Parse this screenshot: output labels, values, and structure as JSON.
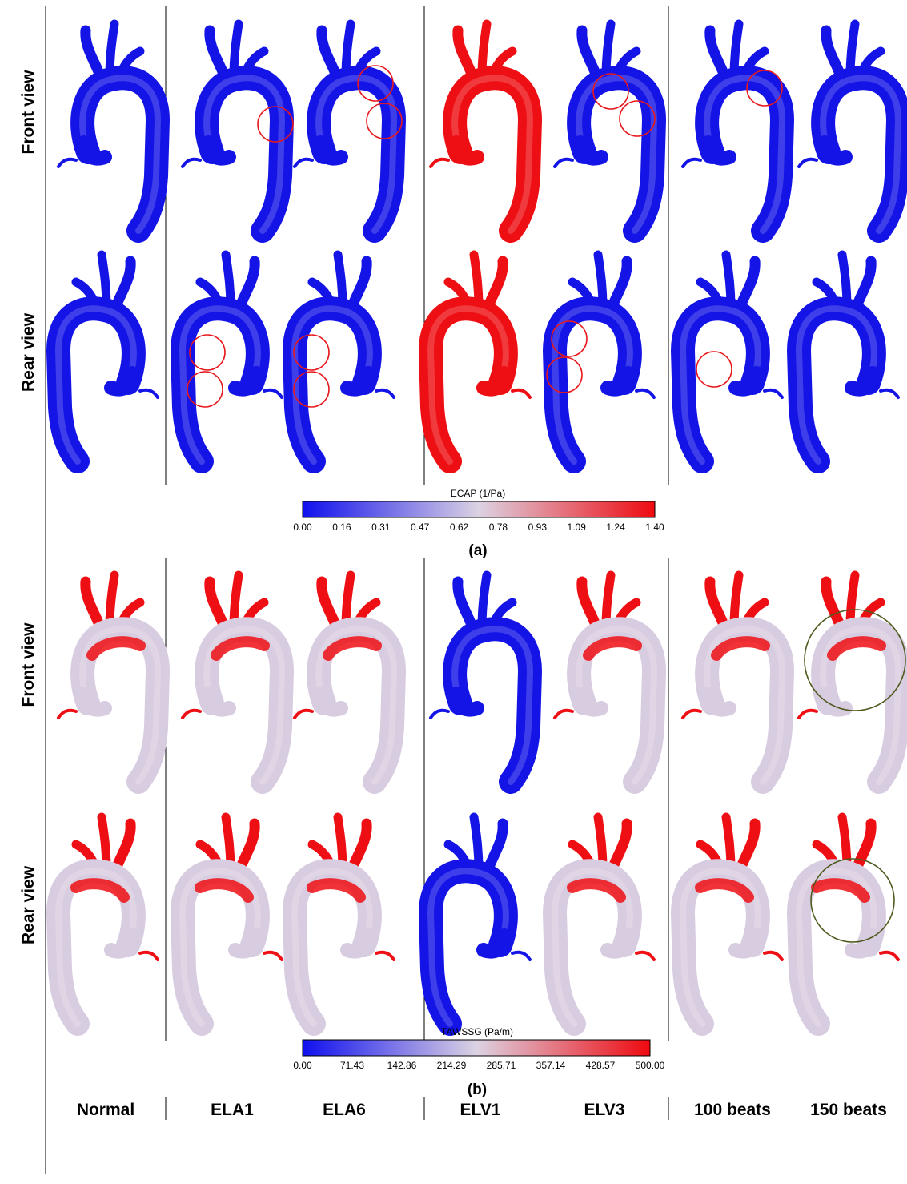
{
  "row_labels": {
    "a_front": "Front view",
    "a_rear": "Rear view",
    "b_front": "Front view",
    "b_rear": "Rear view"
  },
  "column_labels": [
    "Normal",
    "ELA1",
    "ELA6",
    "ELV1",
    "ELV3",
    "100 beats",
    "150 beats"
  ],
  "panel_labels": {
    "a": "(a)",
    "b": "(b)"
  },
  "colorbar_a": {
    "title": "ECAP (1/Pa)",
    "ticks": [
      "0.00",
      "0.16",
      "0.31",
      "0.47",
      "0.62",
      "0.78",
      "0.93",
      "1.09",
      "1.24",
      "1.40"
    ]
  },
  "colorbar_b": {
    "title": "TAWSSG (Pa/m)",
    "ticks": [
      "0.00",
      "71.43",
      "142.86",
      "214.29",
      "285.71",
      "357.14",
      "428.57",
      "500.00"
    ]
  },
  "colors": {
    "low": "#1414e6",
    "mid": "#d8cce0",
    "high": "#ee0f14",
    "marker_red": "#e8191e",
    "marker_green": "#4f5a1d"
  },
  "views": {
    "a_front": [
      "low",
      "low",
      "low",
      "high",
      "low",
      "low",
      "low"
    ],
    "a_rear": [
      "low",
      "low",
      "low",
      "high",
      "low",
      "low",
      "low"
    ],
    "b_front": [
      "mid",
      "mid",
      "mid",
      "low",
      "mid",
      "mid",
      "mid"
    ],
    "b_rear": [
      "mid",
      "mid",
      "mid",
      "low",
      "mid",
      "mid",
      "mid"
    ]
  }
}
